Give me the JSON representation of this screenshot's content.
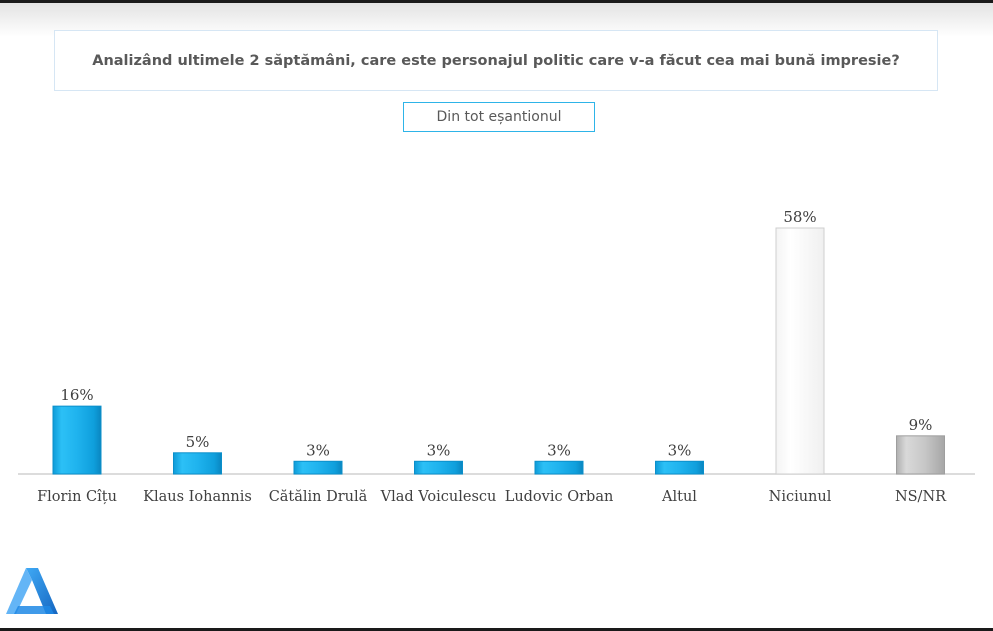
{
  "header": {
    "question": "Analizând ultimele 2 săptămâni, care este personajul politic care v-a făcut cea mai bună impresie?",
    "sample_label": "Din tot eșantionul"
  },
  "chart_data": {
    "type": "bar",
    "categories": [
      "Florin Cîțu",
      "Klaus Iohannis",
      "Cătălin Drulă",
      "Vlad Voiculescu",
      "Ludovic Orban",
      "Altul",
      "Niciunul",
      "NS/NR"
    ],
    "values": [
      16,
      5,
      3,
      3,
      3,
      3,
      58,
      9
    ],
    "value_labels": [
      "16%",
      "5%",
      "3%",
      "3%",
      "3%",
      "3%",
      "58%",
      "9%"
    ],
    "unit": "%",
    "ylim": [
      0,
      60
    ],
    "grid": false,
    "colors": [
      "#1fb3ee",
      "#1fb3ee",
      "#1fb3ee",
      "#1fb3ee",
      "#1fb3ee",
      "#1fb3ee",
      "#ffffff",
      "#c8c8c8"
    ],
    "bar_styles": [
      "blue",
      "blue",
      "blue",
      "blue",
      "blue",
      "blue",
      "white",
      "gray"
    ]
  },
  "colors": {
    "accent": "#1fb3ee",
    "text": "#595959",
    "box_border": "#2eb4e8"
  },
  "icons": {
    "logo": "triangle-a-logo-icon"
  }
}
